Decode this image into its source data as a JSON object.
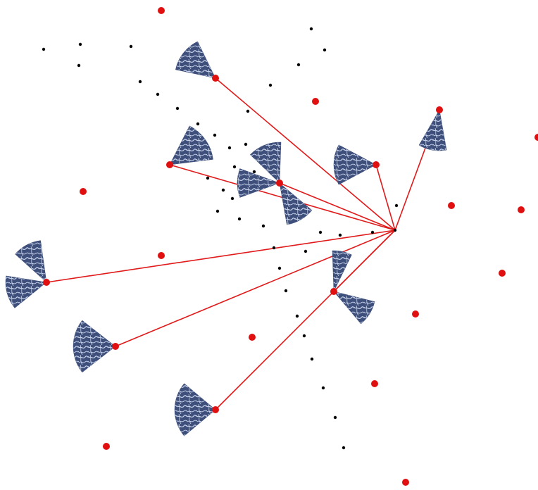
{
  "colors": {
    "background": "#ffffff",
    "link_line": "#e01a1a",
    "red_node": "#e01010",
    "black_point": "#000000",
    "wedge_fill": "#3d4f7a",
    "wedge_texture": "#c9d3ec"
  },
  "diagram": {
    "hub": "black-point",
    "linked_nodes": 9,
    "unlinked_red_nodes": 13,
    "black_points": 39
  }
}
